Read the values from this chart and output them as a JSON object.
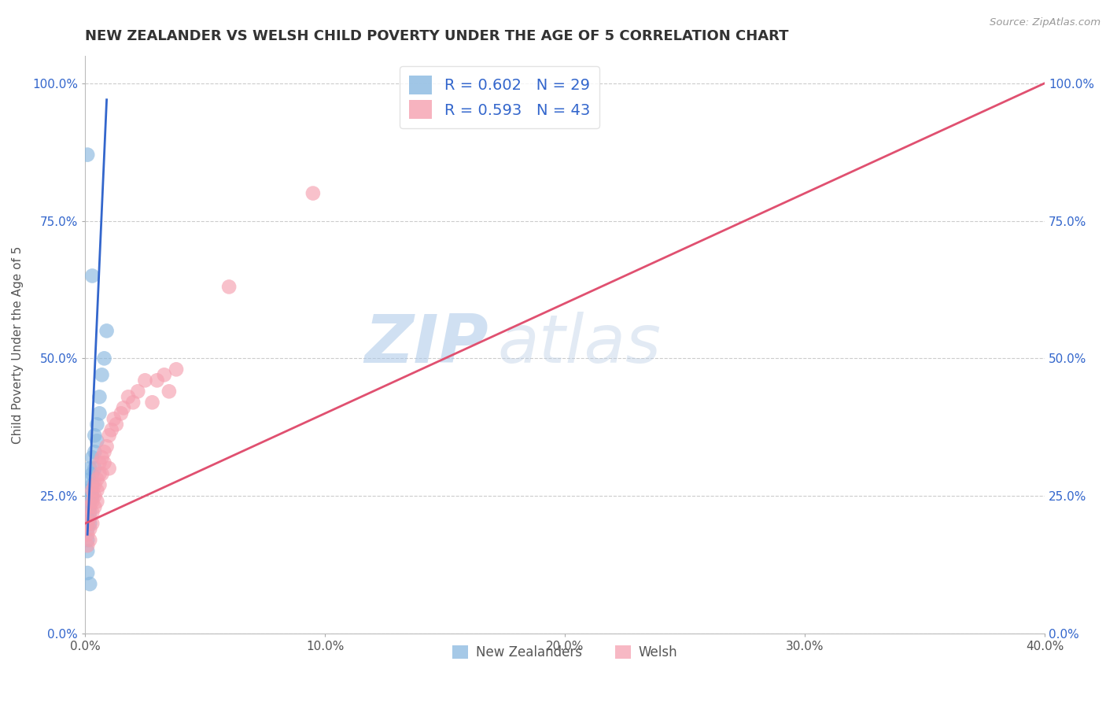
{
  "title": "NEW ZEALANDER VS WELSH CHILD POVERTY UNDER THE AGE OF 5 CORRELATION CHART",
  "source": "Source: ZipAtlas.com",
  "ylabel": "Child Poverty Under the Age of 5",
  "xlim": [
    0.0,
    0.4
  ],
  "ylim": [
    0.0,
    1.05
  ],
  "xticks": [
    0.0,
    0.1,
    0.2,
    0.3,
    0.4
  ],
  "xtick_labels": [
    "0.0%",
    "10.0%",
    "20.0%",
    "30.0%",
    "40.0%"
  ],
  "yticks": [
    0.0,
    0.25,
    0.5,
    0.75,
    1.0
  ],
  "ytick_labels": [
    "0.0%",
    "25.0%",
    "50.0%",
    "75.0%",
    "100.0%"
  ],
  "nz_color": "#89b8e0",
  "welsh_color": "#f5a0b0",
  "nz_line_color": "#3366cc",
  "welsh_line_color": "#e05070",
  "nz_R": 0.602,
  "nz_N": 29,
  "welsh_R": 0.593,
  "welsh_N": 43,
  "watermark_zip": "ZIP",
  "watermark_atlas": "atlas",
  "nz_scatter": [
    [
      0.001,
      0.17
    ],
    [
      0.001,
      0.15
    ],
    [
      0.001,
      0.19
    ],
    [
      0.001,
      0.21
    ],
    [
      0.001,
      0.23
    ],
    [
      0.002,
      0.2
    ],
    [
      0.002,
      0.22
    ],
    [
      0.002,
      0.24
    ],
    [
      0.002,
      0.26
    ],
    [
      0.002,
      0.28
    ],
    [
      0.002,
      0.3
    ],
    [
      0.003,
      0.25
    ],
    [
      0.003,
      0.27
    ],
    [
      0.003,
      0.29
    ],
    [
      0.003,
      0.32
    ],
    [
      0.004,
      0.3
    ],
    [
      0.004,
      0.33
    ],
    [
      0.004,
      0.36
    ],
    [
      0.005,
      0.35
    ],
    [
      0.005,
      0.38
    ],
    [
      0.006,
      0.4
    ],
    [
      0.006,
      0.43
    ],
    [
      0.007,
      0.47
    ],
    [
      0.008,
      0.5
    ],
    [
      0.009,
      0.55
    ],
    [
      0.001,
      0.87
    ],
    [
      0.003,
      0.65
    ],
    [
      0.001,
      0.11
    ],
    [
      0.002,
      0.09
    ]
  ],
  "welsh_scatter": [
    [
      0.001,
      0.16
    ],
    [
      0.001,
      0.18
    ],
    [
      0.001,
      0.2
    ],
    [
      0.002,
      0.17
    ],
    [
      0.002,
      0.19
    ],
    [
      0.002,
      0.21
    ],
    [
      0.002,
      0.23
    ],
    [
      0.003,
      0.2
    ],
    [
      0.003,
      0.22
    ],
    [
      0.003,
      0.24
    ],
    [
      0.003,
      0.26
    ],
    [
      0.004,
      0.23
    ],
    [
      0.004,
      0.25
    ],
    [
      0.004,
      0.27
    ],
    [
      0.005,
      0.24
    ],
    [
      0.005,
      0.26
    ],
    [
      0.005,
      0.28
    ],
    [
      0.006,
      0.27
    ],
    [
      0.006,
      0.29
    ],
    [
      0.006,
      0.31
    ],
    [
      0.007,
      0.29
    ],
    [
      0.007,
      0.32
    ],
    [
      0.008,
      0.31
    ],
    [
      0.008,
      0.33
    ],
    [
      0.009,
      0.34
    ],
    [
      0.01,
      0.3
    ],
    [
      0.01,
      0.36
    ],
    [
      0.011,
      0.37
    ],
    [
      0.012,
      0.39
    ],
    [
      0.013,
      0.38
    ],
    [
      0.015,
      0.4
    ],
    [
      0.016,
      0.41
    ],
    [
      0.018,
      0.43
    ],
    [
      0.02,
      0.42
    ],
    [
      0.022,
      0.44
    ],
    [
      0.025,
      0.46
    ],
    [
      0.028,
      0.42
    ],
    [
      0.03,
      0.46
    ],
    [
      0.033,
      0.47
    ],
    [
      0.035,
      0.44
    ],
    [
      0.038,
      0.48
    ],
    [
      0.06,
      0.63
    ],
    [
      0.095,
      0.8
    ]
  ],
  "nz_trendline": [
    [
      0.001,
      0.18
    ],
    [
      0.009,
      0.97
    ]
  ],
  "welsh_trendline": [
    [
      0.0,
      0.2
    ],
    [
      0.4,
      1.0
    ]
  ]
}
